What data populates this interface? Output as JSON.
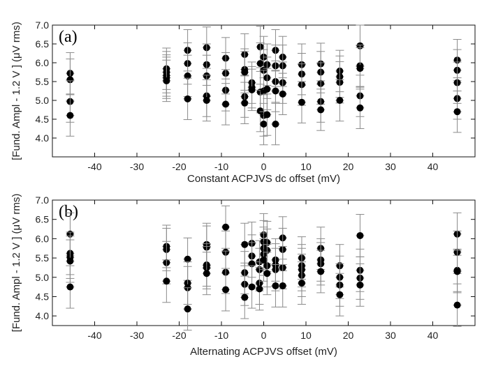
{
  "chart_data": [
    {
      "type": "scatter",
      "panel_label": "(a)",
      "xlabel": "Constant ACPJVS dc offset (mV)",
      "ylabel": "[Fund. Ampl - 1.2 V ]  (μV rms)",
      "xlim": [
        -50,
        50
      ],
      "ylim": [
        3.5,
        7.0
      ],
      "xticks": [
        -40,
        -30,
        -20,
        -10,
        0,
        10,
        20,
        30,
        40
      ],
      "yticks": [
        4.0,
        4.5,
        5.0,
        5.5,
        6.0,
        6.5,
        7.0
      ],
      "x_tick_labels": [
        "-40",
        "-30",
        "-20",
        "-10",
        "0",
        "10",
        "20",
        "30",
        "40"
      ],
      "y_tick_labels": [
        "4.0",
        "4.5",
        "5.0",
        "5.5",
        "6.0",
        "6.5",
        "7.0"
      ],
      "error_bar": 0.55,
      "points": [
        [
          -45.8,
          5.72
        ],
        [
          -45.8,
          5.55
        ],
        [
          -45.8,
          4.97
        ],
        [
          -45.8,
          4.6
        ],
        [
          -23,
          5.84
        ],
        [
          -23,
          5.75
        ],
        [
          -23,
          5.66
        ],
        [
          -23,
          5.6
        ],
        [
          -23,
          5.52
        ],
        [
          -18,
          6.33
        ],
        [
          -18,
          5.98
        ],
        [
          -18,
          5.65
        ],
        [
          -18,
          5.04
        ],
        [
          -13.5,
          6.4
        ],
        [
          -13.5,
          5.95
        ],
        [
          -13.5,
          5.65
        ],
        [
          -13.5,
          5.12
        ],
        [
          -13.5,
          5.0
        ],
        [
          -9,
          6.12
        ],
        [
          -9,
          5.72
        ],
        [
          -9,
          5.27
        ],
        [
          -9,
          4.9
        ],
        [
          -4.5,
          6.22
        ],
        [
          -4.5,
          5.82
        ],
        [
          -4.5,
          5.75
        ],
        [
          -4.5,
          5.1
        ],
        [
          -4.5,
          4.93
        ],
        [
          -2.8,
          5.47
        ],
        [
          -2.8,
          5.35
        ],
        [
          -2.8,
          5.28
        ],
        [
          -0.8,
          6.42
        ],
        [
          -0.8,
          5.98
        ],
        [
          -0.8,
          5.22
        ],
        [
          -0.8,
          4.72
        ],
        [
          0,
          6.15
        ],
        [
          0,
          5.8
        ],
        [
          0,
          5.25
        ],
        [
          0,
          4.6
        ],
        [
          0,
          4.37
        ],
        [
          0.8,
          5.95
        ],
        [
          0.8,
          5.6
        ],
        [
          0.8,
          5.3
        ],
        [
          0.8,
          4.62
        ],
        [
          2.8,
          6.33
        ],
        [
          2.8,
          5.92
        ],
        [
          2.8,
          5.5
        ],
        [
          2.8,
          5.25
        ],
        [
          2.8,
          4.37
        ],
        [
          4.5,
          6.15
        ],
        [
          4.5,
          5.92
        ],
        [
          4.5,
          5.47
        ],
        [
          4.5,
          5.17
        ],
        [
          9,
          5.95
        ],
        [
          9,
          5.7
        ],
        [
          9,
          5.42
        ],
        [
          9,
          4.95
        ],
        [
          13.5,
          5.97
        ],
        [
          13.5,
          5.75
        ],
        [
          13.5,
          5.45
        ],
        [
          13.5,
          4.97
        ],
        [
          13.5,
          4.75
        ],
        [
          18,
          5.78
        ],
        [
          18,
          5.63
        ],
        [
          18,
          5.48
        ],
        [
          18,
          5.0
        ],
        [
          22.8,
          6.45
        ],
        [
          22.8,
          5.92
        ],
        [
          22.8,
          5.85
        ],
        [
          22.8,
          5.12
        ],
        [
          22.8,
          4.8
        ],
        [
          45.8,
          6.07
        ],
        [
          45.8,
          5.8
        ],
        [
          45.8,
          5.47
        ],
        [
          45.8,
          5.05
        ],
        [
          45.8,
          4.7
        ]
      ]
    },
    {
      "type": "scatter",
      "panel_label": "(b)",
      "xlabel": "Alternating ACPJVS offset (mV)",
      "ylabel": "[Fund. Ampl - 1.2 V ]  (μV rms)",
      "xlim": [
        -50,
        50
      ],
      "ylim": [
        3.75,
        7.0
      ],
      "xticks": [
        -40,
        -30,
        -20,
        -10,
        0,
        10,
        20,
        30,
        40
      ],
      "yticks": [
        4.0,
        4.5,
        5.0,
        5.5,
        6.0,
        6.5,
        7.0
      ],
      "x_tick_labels": [
        "-40",
        "-30",
        "-20",
        "-10",
        "0",
        "10",
        "20",
        "30",
        "40"
      ],
      "y_tick_labels": [
        "4.0",
        "4.5",
        "5.0",
        "5.5",
        "6.0",
        "6.5",
        "7.0"
      ],
      "error_bar": 0.55,
      "points": [
        [
          -45.8,
          6.12
        ],
        [
          -45.8,
          5.62
        ],
        [
          -45.8,
          5.52
        ],
        [
          -45.8,
          5.42
        ],
        [
          -45.8,
          4.75
        ],
        [
          -23,
          5.8
        ],
        [
          -23,
          5.72
        ],
        [
          -23,
          5.38
        ],
        [
          -23,
          4.9
        ],
        [
          -18,
          5.47
        ],
        [
          -18,
          4.85
        ],
        [
          -18,
          4.73
        ],
        [
          -18,
          4.18
        ],
        [
          -13.5,
          5.85
        ],
        [
          -13.5,
          5.78
        ],
        [
          -13.5,
          5.32
        ],
        [
          -13.5,
          5.25
        ],
        [
          -13.5,
          5.1
        ],
        [
          -9,
          6.3
        ],
        [
          -9,
          5.65
        ],
        [
          -9,
          5.13
        ],
        [
          -9,
          4.68
        ],
        [
          -4.5,
          5.85
        ],
        [
          -4.5,
          5.12
        ],
        [
          -4.5,
          4.82
        ],
        [
          -4.5,
          4.48
        ],
        [
          -2.8,
          5.88
        ],
        [
          -2.8,
          5.55
        ],
        [
          -2.8,
          5.35
        ],
        [
          -2.8,
          4.75
        ],
        [
          -1,
          5.4
        ],
        [
          -1,
          5.2
        ],
        [
          -1,
          4.85
        ],
        [
          -1,
          4.7
        ],
        [
          0,
          6.1
        ],
        [
          0,
          5.92
        ],
        [
          0,
          5.75
        ],
        [
          0,
          5.6
        ],
        [
          0,
          5.45
        ],
        [
          0.8,
          5.9
        ],
        [
          0.8,
          5.7
        ],
        [
          0.8,
          5.3
        ],
        [
          0.8,
          5.1
        ],
        [
          2.8,
          5.45
        ],
        [
          2.8,
          5.32
        ],
        [
          2.8,
          5.2
        ],
        [
          2.8,
          4.78
        ],
        [
          4.5,
          6.02
        ],
        [
          4.5,
          5.72
        ],
        [
          4.5,
          5.25
        ],
        [
          4.5,
          4.78
        ],
        [
          9,
          5.5
        ],
        [
          9,
          5.3
        ],
        [
          9,
          5.2
        ],
        [
          9,
          5.05
        ],
        [
          9,
          4.85
        ],
        [
          13.5,
          5.75
        ],
        [
          13.5,
          5.45
        ],
        [
          13.5,
          5.35
        ],
        [
          13.5,
          5.15
        ],
        [
          18,
          5.3
        ],
        [
          18,
          5.0
        ],
        [
          18,
          4.8
        ],
        [
          18,
          4.55
        ],
        [
          22.8,
          6.08
        ],
        [
          22.8,
          5.18
        ],
        [
          22.8,
          4.98
        ],
        [
          22.8,
          4.8
        ],
        [
          45.8,
          6.12
        ],
        [
          45.8,
          5.65
        ],
        [
          45.8,
          5.18
        ],
        [
          45.8,
          5.15
        ],
        [
          45.8,
          4.28
        ]
      ]
    }
  ]
}
